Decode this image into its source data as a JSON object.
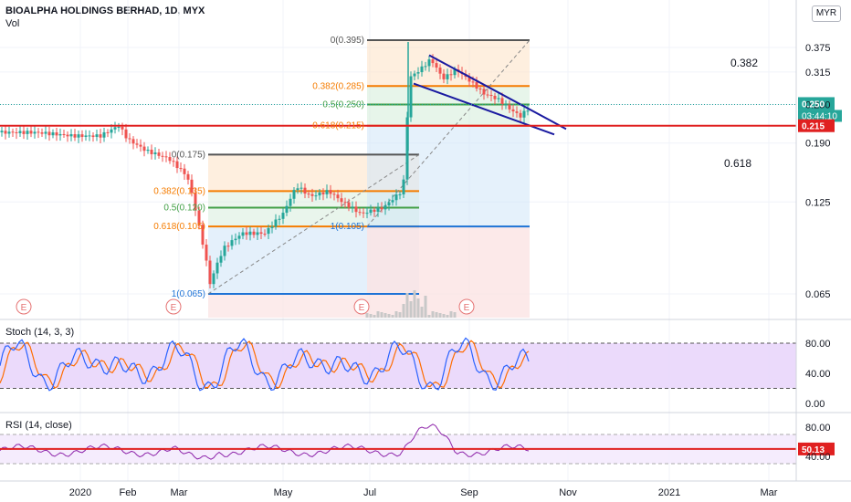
{
  "header": {
    "title": "BIOALPHA HOLDINGS BERHAD, 1D, MYX",
    "sub": "Vol",
    "currency": "MYR"
  },
  "colors": {
    "up": "#26a69a",
    "down": "#ef5350",
    "red_line": "#e02020",
    "fib_382": "#f57c00",
    "fib_50": "#43a047",
    "fib_618": "#f57c00",
    "fib_0": "#555555",
    "fib_1": "#1e73d6",
    "trend": "#1a1aa0",
    "stoch_k": "#2962ff",
    "stoch_d": "#ff6d00",
    "rsi": "#8e24aa",
    "osc_band": "#e9d6fb",
    "rsi_band": "#f4eafd"
  },
  "chart_data": [
    {
      "type": "candlestick",
      "name": "main-price",
      "y_scale": "log",
      "ylim": [
        0.055,
        0.43
      ],
      "y_ticks": [
        "0.375",
        "0.315",
        "0.250",
        "0.190",
        "0.125",
        "0.065"
      ],
      "x_ticks": [
        "2020",
        "Feb",
        "Mar",
        "May",
        "Jul",
        "Sep",
        "Nov",
        "2021",
        "Mar"
      ],
      "price_labels": {
        "last": "0.250",
        "countdown": "03:44:10",
        "support": "0.215"
      },
      "horizontal_line": 0.215,
      "current_price": 0.25,
      "text_annotations": [
        "0.382",
        "0.618"
      ],
      "event_markers": [
        "E",
        "E",
        "E",
        "E"
      ],
      "fib_retracement_1": {
        "levels": [
          {
            "label": "0(0.175)",
            "value": 0.175
          },
          {
            "label": "0.382(0.135)",
            "value": 0.135
          },
          {
            "label": "0.5(0.120)",
            "value": 0.12
          },
          {
            "label": "0.618(0.105)",
            "value": 0.105
          },
          {
            "label": "1(0.065)",
            "value": 0.065
          }
        ]
      },
      "fib_retracement_2": {
        "levels": [
          {
            "label": "0(0.395)",
            "value": 0.395
          },
          {
            "label": "0.382(0.285)",
            "value": 0.285
          },
          {
            "label": "0.5(0.250)",
            "value": 0.25
          },
          {
            "label": "0.618(0.215)",
            "value": 0.215
          },
          {
            "label": "1(0.105)",
            "value": 0.105
          }
        ]
      }
    },
    {
      "type": "line",
      "name": "stoch",
      "title": "Stoch (14, 3, 3)",
      "ylim": [
        0,
        100
      ],
      "y_ticks": [
        "80.00",
        "40.00",
        "0.00"
      ],
      "band": [
        20,
        80
      ]
    },
    {
      "type": "line",
      "name": "rsi",
      "title": "RSI (14, close)",
      "ylim": [
        25,
        95
      ],
      "y_ticks": [
        "80.00",
        "40.00"
      ],
      "band": [
        30,
        70
      ],
      "last_value": "50.13"
    }
  ]
}
